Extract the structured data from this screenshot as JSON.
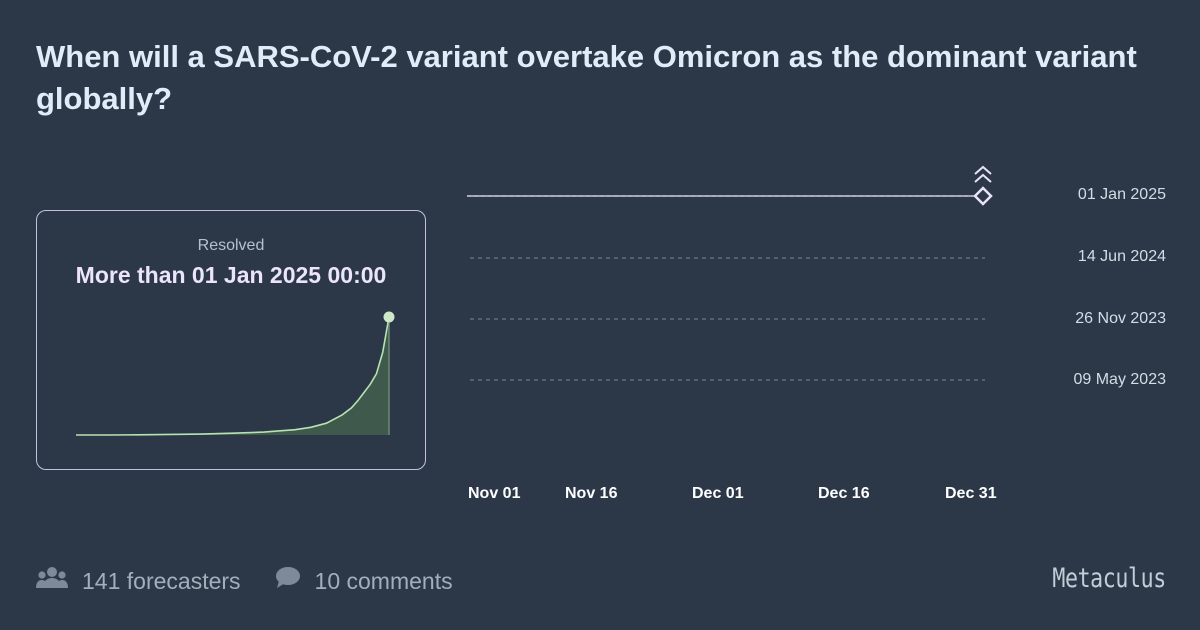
{
  "question": {
    "title": "When will a SARS-CoV-2 variant overtake Omicron as the dominant variant globally?"
  },
  "resolution": {
    "status_label": "Resolved",
    "value": "More than 01 Jan 2025 00:00"
  },
  "timeline": {
    "y_labels": [
      "01 Jan 2025",
      "14 Jun 2024",
      "26 Nov 2023",
      "09 May 2023"
    ],
    "x_labels": [
      "Nov 01",
      "Nov 16",
      "Dec 01",
      "Dec 16",
      "Dec 31"
    ]
  },
  "chart_data": {
    "type": "line",
    "series": [
      {
        "x": [
          0.0,
          0.1,
          0.2,
          0.3,
          0.4,
          0.5,
          0.6,
          0.7,
          0.75,
          0.8,
          0.85,
          0.88,
          0.9,
          0.92,
          0.94,
          0.96,
          0.98,
          1.0
        ],
        "y": [
          0.0,
          0.0,
          0.002,
          0.005,
          0.008,
          0.015,
          0.025,
          0.045,
          0.065,
          0.1,
          0.17,
          0.23,
          0.29,
          0.36,
          0.43,
          0.52,
          0.7,
          1.0
        ]
      }
    ],
    "resolved_marker": "01 Jan 2025",
    "colors": {
      "line": "#b7e3b2",
      "fill": "#3f5a4d",
      "marker": "#cfe8c8",
      "timeline_line": "#e8e3f5"
    }
  },
  "footer": {
    "forecasters": "141 forecasters",
    "comments": "10 comments",
    "brand": "Metaculus"
  }
}
